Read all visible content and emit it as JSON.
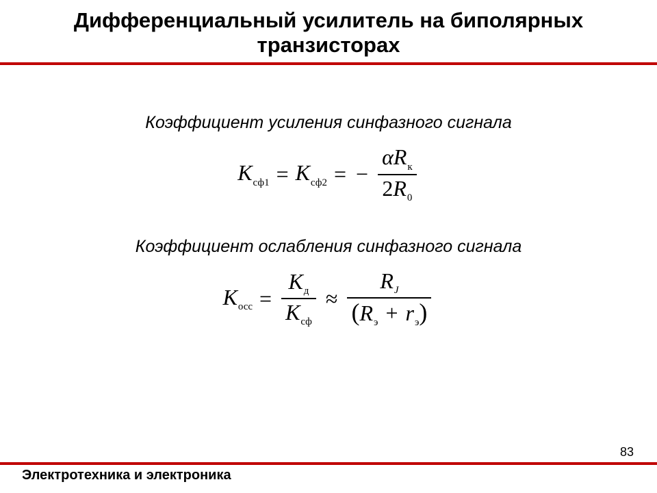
{
  "colors": {
    "accent": "#c00000",
    "text": "#000000",
    "background": "#ffffff"
  },
  "title": "Дифференциальный усилитель на биполярных транзисторах",
  "section1_heading": "Коэффициент усиления синфазного сигнала",
  "section2_heading": "Коэффициент ослабления синфазного сигнала",
  "eq1": {
    "K": "К",
    "sub_sf1": "сф1",
    "sub_sf2": "сф2",
    "eq": "=",
    "minus": "−",
    "alpha": "α",
    "R": "R",
    "sub_k": "к",
    "two": "2",
    "sub_0": "0"
  },
  "eq2": {
    "K": "К",
    "sub_occ": "осс",
    "eq": "=",
    "sub_d": "д",
    "sub_sf": "сф",
    "approx": "≈",
    "R": "R",
    "sub_J": "J",
    "r": "r",
    "sub_e": "э",
    "plus": "+",
    "lparen": "(",
    "rparen": ")"
  },
  "footer": "Электротехника и электроника",
  "page_number": "83"
}
